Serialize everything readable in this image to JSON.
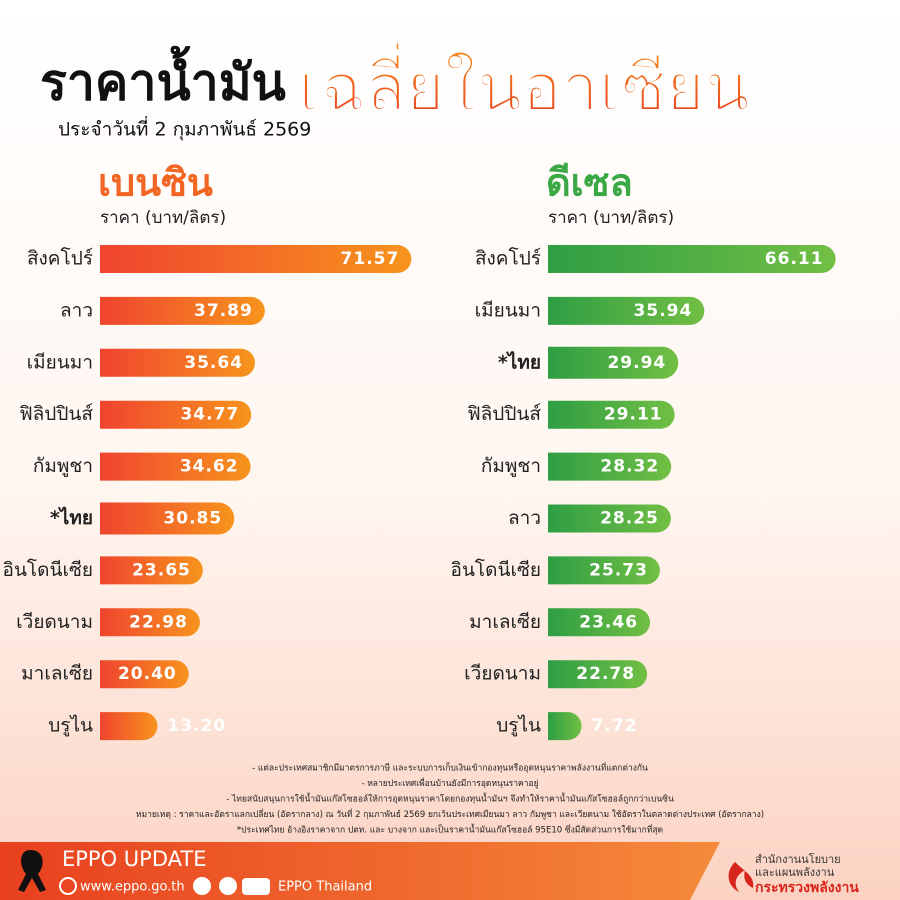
{
  "header": {
    "title": "ราคาน้ำมัน",
    "title_highlight": "เฉลี่ยในอาเซียน",
    "subtitle": "ประจำวันที่  2 กุมภาพันธ์ 2569"
  },
  "chart_data": [
    {
      "type": "bar",
      "title": "เบนซิน",
      "subtitle": "ราคา (บาท/ลิตร)",
      "categories": [
        "สิงคโปร์",
        "ลาว",
        "เมียนมา",
        "ฟิลิปปินส์",
        "กัมพูชา",
        "*ไทย",
        "อินโดนีเซีย",
        "เวียดนาม",
        "มาเลเซีย",
        "บรูไน"
      ],
      "values": [
        71.57,
        37.89,
        35.64,
        34.77,
        34.62,
        30.85,
        23.65,
        22.98,
        20.4,
        13.2
      ],
      "value_labels": [
        "71.57",
        "37.89",
        "35.64",
        "34.77",
        "34.62",
        "30.85",
        "23.65",
        "22.98",
        "20.40",
        "13.20"
      ],
      "colors": [
        "#f0442f",
        "#f7941d"
      ],
      "title_color": "#f26522"
    },
    {
      "type": "bar",
      "title": "ดีเซล",
      "subtitle": "ราคา (บาท/ลิตร)",
      "categories": [
        "สิงคโปร์",
        "เมียนมา",
        "*ไทย",
        "ฟิลิปปินส์",
        "กัมพูชา",
        "ลาว",
        "อินโดนีเซีย",
        "มาเลเซีย",
        "เวียดนาม",
        "บรูไน"
      ],
      "values": [
        66.11,
        35.94,
        29.94,
        29.11,
        28.32,
        28.25,
        25.73,
        23.46,
        22.78,
        7.72
      ],
      "value_labels": [
        "66.11",
        "35.94",
        "29.94",
        "29.11",
        "28.32",
        "28.25",
        "25.73",
        "23.46",
        "22.78",
        "7.72"
      ],
      "colors": [
        "#2e9e44",
        "#72bf44"
      ],
      "title_color": "#39a845"
    }
  ],
  "notes": [
    "- แต่ละประเทศสมาชิกมีมาตรการภาษี และระบบการเก็บเงินเข้ากองทุนหรืออุดหนุนราคาพลังงานที่แตกต่างกัน",
    "- หลายประเทศเพื่อนบ้านยังมีการอุดหนุนราคาอยู่",
    "- ไทยสนับสนุนการใช้น้ำมันแก๊สโซฮอล์ให้การอุดหนุนราคาโดยกองทุนน้ำมันฯ จึงทำให้ราคาน้ำมันแก๊สโซฮอล์ถูกกว่าเบนซิน",
    "หมายเหตุ : ราคาและอัตราแลกเปลี่ยน (อัตรากลาง) ณ วันที่ 2 กุมภาพันธ์ 2569 ยกเว้นประเทศเมียนมา ลาว กัมพูชา และเวียดนาม ใช้อัตราในตลาดต่างประเทศ (อัตรากลาง)",
    "*ประเทศไทย อ้างอิงราคาจาก ปตท. และ บางจาก และเป็นราคาน้ำมันแก๊สโซฮอล์ 95E10 ซึ่งมีสัดส่วนการใช้มากที่สุด"
  ],
  "footer": {
    "brand": "EPPO UPDATE",
    "website": "www.eppo.go.th",
    "social": "EPPO Thailand",
    "org_line1": "สำนักงานนโยบาย",
    "org_line2": "และแผนพลังงาน",
    "ministry": "กระทรวงพลังงาน"
  }
}
